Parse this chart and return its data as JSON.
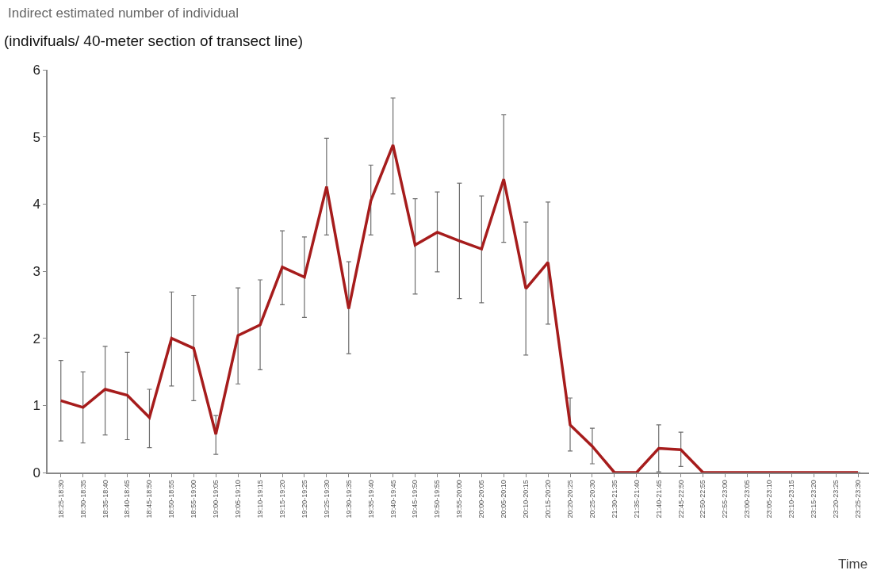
{
  "chart_data": {
    "type": "line",
    "title": "Indirect estimated number of individual",
    "ylabel": "(indivifuals/ 40-meter section of transect line)",
    "xlabel": "Time",
    "categories": [
      "18:25-18:30",
      "18:30-18:35",
      "18:35-18:40",
      "18:40-18:45",
      "18:45-18:50",
      "18:50-18:55",
      "18:55-19:00",
      "19:00-19:05",
      "19:05-19:10",
      "19:10-19:15",
      "19:15-19:20",
      "19:20-19:25",
      "19:25-19:30",
      "19:30-19:35",
      "19:35-19:40",
      "19:40-19:45",
      "19:45-19:50",
      "19:50-19:55",
      "19:55-20:00",
      "20:00-20:05",
      "20:05-20:10",
      "20:10-20:15",
      "20:15-20:20",
      "20:20-20:25",
      "20:25-20:30",
      "21:30-21:35",
      "21:35-21:40",
      "21:40-21:45",
      "22:45-22:50",
      "22:50-22:55",
      "22:55-23:00",
      "23:00-23:05",
      "23:05-23:10",
      "23:10-23:15",
      "23:15-23:20",
      "23:20-23:25",
      "23:25-23:30"
    ],
    "series": [
      {
        "color": "#a61c1c",
        "values": [
          1.07,
          0.97,
          1.24,
          1.15,
          0.82,
          2.0,
          1.85,
          0.57,
          2.04,
          2.2,
          3.06,
          2.91,
          4.26,
          2.44,
          4.05,
          4.88,
          3.39,
          3.58,
          3.45,
          3.33,
          4.37,
          2.74,
          3.13,
          0.71,
          0.39,
          0,
          0,
          0.36,
          0.34,
          0,
          0,
          0,
          0,
          0,
          0,
          0,
          0
        ],
        "errors": [
          [
            0.47,
            1.67
          ],
          [
            0.44,
            1.5
          ],
          [
            0.56,
            1.88
          ],
          [
            0.49,
            1.79
          ],
          [
            0.37,
            1.24
          ],
          [
            1.29,
            2.69
          ],
          [
            1.07,
            2.64
          ],
          [
            0.27,
            0.85
          ],
          [
            1.32,
            2.75
          ],
          [
            1.53,
            2.87
          ],
          [
            2.5,
            3.6
          ],
          [
            2.31,
            3.51
          ],
          [
            3.54,
            4.98
          ],
          [
            1.77,
            3.14
          ],
          [
            3.54,
            4.58
          ],
          [
            4.15,
            5.58
          ],
          [
            2.66,
            4.08
          ],
          [
            2.99,
            4.18
          ],
          [
            2.59,
            4.31
          ],
          [
            2.53,
            4.12
          ],
          [
            3.43,
            5.33
          ],
          [
            1.75,
            3.73
          ],
          [
            2.21,
            4.03
          ],
          [
            0.32,
            1.11
          ],
          [
            0.13,
            0.66
          ],
          null,
          null,
          [
            0.01,
            0.71
          ],
          [
            0.09,
            0.6
          ],
          null,
          null,
          null,
          null,
          null,
          null,
          null,
          null
        ]
      }
    ],
    "ylim": [
      0,
      6
    ],
    "yticks": [
      0,
      1,
      2,
      3,
      4,
      5,
      6
    ],
    "grid": false,
    "marker": "none",
    "line_style": "solid"
  }
}
